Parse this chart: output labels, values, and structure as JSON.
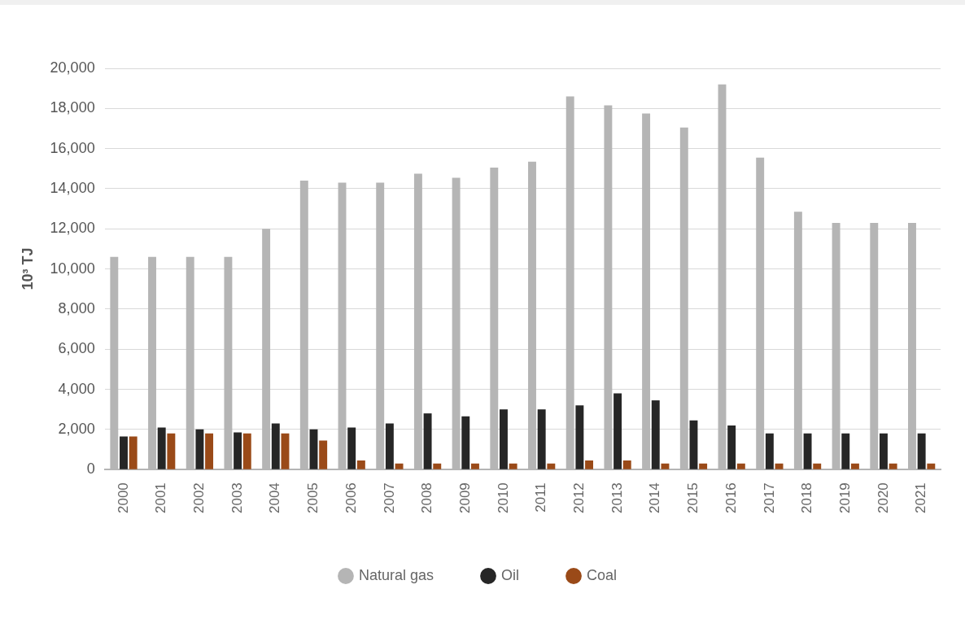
{
  "chart_data": {
    "type": "bar",
    "ylabel": "10³ TJ",
    "categories": [
      "2000",
      "2001",
      "2002",
      "2003",
      "2004",
      "2005",
      "2006",
      "2007",
      "2008",
      "2009",
      "2010",
      "2011",
      "2012",
      "2013",
      "2014",
      "2015",
      "2016",
      "2017",
      "2018",
      "2019",
      "2020",
      "2021"
    ],
    "series": [
      {
        "name": "Natural gas",
        "color": "#b5b5b5",
        "values": [
          10600,
          10600,
          10600,
          10600,
          12000,
          14400,
          14300,
          14300,
          14750,
          14550,
          15050,
          15350,
          18600,
          18150,
          17750,
          17050,
          19200,
          15550,
          12850,
          12300,
          12300,
          12300
        ]
      },
      {
        "name": "Oil",
        "color": "#262626",
        "values": [
          1650,
          2100,
          2000,
          1850,
          2300,
          2000,
          2100,
          2300,
          2800,
          2650,
          3000,
          3000,
          3200,
          3800,
          3450,
          2450,
          2200,
          1800,
          1800,
          1800,
          1800,
          1800
        ]
      },
      {
        "name": "Coal",
        "color": "#9a4a18",
        "values": [
          1650,
          1800,
          1800,
          1800,
          1800,
          1450,
          450,
          300,
          300,
          300,
          300,
          300,
          450,
          450,
          300,
          300,
          300,
          300,
          300,
          300,
          300,
          300
        ]
      }
    ],
    "ylim": [
      0,
      20000
    ],
    "yticks": [
      0,
      {
        "value": 2000,
        "label": "2,000"
      },
      {
        "value": 4000,
        "label": "4,000"
      },
      {
        "value": 6000,
        "label": "6,000"
      },
      {
        "value": 8000,
        "label": "8,000"
      },
      {
        "value": 10000,
        "label": "10,000"
      },
      {
        "value": 12000,
        "label": "12,000"
      },
      {
        "value": 14000,
        "label": "14,000"
      },
      {
        "value": 16000,
        "label": "16,000"
      },
      {
        "value": 18000,
        "label": "18,000"
      },
      {
        "value": 20000,
        "label": "20,000"
      }
    ],
    "grid": "y",
    "legend": "bottom"
  }
}
